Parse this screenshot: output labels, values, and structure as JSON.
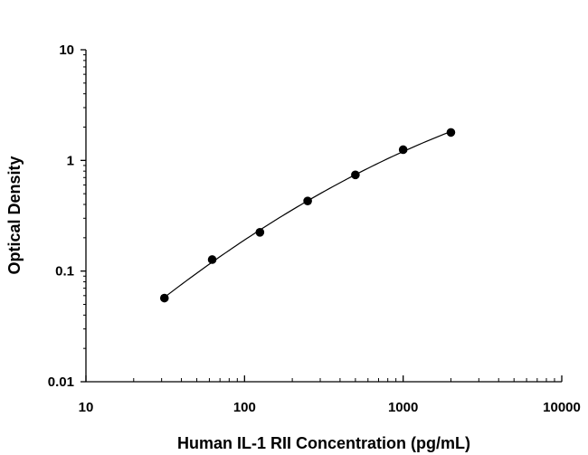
{
  "chart_data": {
    "type": "scatter",
    "title": "",
    "xlabel": "Human IL-1 RII Concentration (pg/mL)",
    "ylabel": "Optical Density",
    "xscale": "log",
    "yscale": "log",
    "xlim": [
      10,
      10000
    ],
    "ylim": [
      0.01,
      10
    ],
    "xticks": [
      10,
      100,
      1000,
      10000
    ],
    "xtick_labels": [
      "10",
      "100",
      "1000",
      "10000"
    ],
    "yticks": [
      0.01,
      0.1,
      1,
      10
    ],
    "ytick_labels": [
      "0.01",
      "0.1",
      "1",
      "10"
    ],
    "grid": false,
    "legend": "none",
    "series": [
      {
        "x": [
          31.25,
          62.5,
          125,
          250,
          500,
          1000,
          2000
        ],
        "y": [
          0.057,
          0.127,
          0.224,
          0.43,
          0.74,
          1.25,
          1.79
        ]
      }
    ],
    "fit_curve": true,
    "marker_color": "#000000"
  }
}
